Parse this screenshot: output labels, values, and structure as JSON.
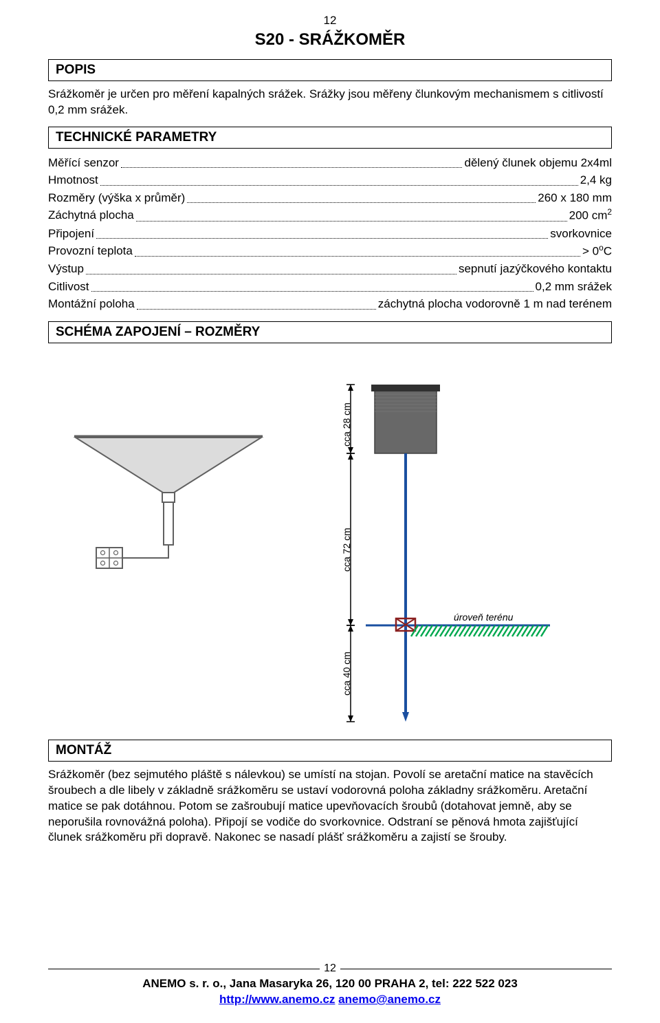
{
  "page_number_top": "12",
  "doc_title": "S20 - SRÁŽKOMĚR",
  "sections": {
    "popis": {
      "heading": "POPIS",
      "text": "Srážkoměr je určen pro měření kapalných srážek. Srážky jsou měřeny člunkovým mechanismem s citlivostí 0,2 mm srážek."
    },
    "tech": {
      "heading": "TECHNICKÉ PARAMETRY"
    },
    "schema": {
      "heading": "SCHÉMA ZAPOJENÍ – ROZMĚRY"
    },
    "montaz": {
      "heading": "MONTÁŽ",
      "text": "Srážkoměr (bez sejmutého pláště s nálevkou) se umístí na stojan. Povolí se aretační matice na stavěcích šroubech a dle libely v základně srážkoměru se ustaví vodorovná poloha základny srážkoměru. Aretační matice se pak dotáhnou. Potom se zašroubují matice upevňovacích šroubů (dotahovat jemně, aby se neporušila rovnovážná poloha). Připojí se vodiče do svorkovnice. Odstraní se pěnová hmota zajišťující člunek srážkoměru při dopravě. Nakonec se nasadí plášť srážkoměru a zajistí se šrouby."
    }
  },
  "params": [
    {
      "label": "Měřící senzor",
      "value": "dělený člunek objemu 2x4ml"
    },
    {
      "label": "Hmotnost",
      "value": "2,4 kg"
    },
    {
      "label": "Rozměry (výška x průměr)",
      "value": "260 x 180 mm"
    },
    {
      "label": "Záchytná plocha",
      "value_html": "200 cm<sup>2</sup>"
    },
    {
      "label": "Připojení",
      "value": "svorkovnice"
    },
    {
      "label": "Provozní teplota",
      "value_html": "> 0<sup>o</sup>C"
    },
    {
      "label": "Výstup",
      "value": "sepnutí jazýčkového kontaktu"
    },
    {
      "label": "Citlivost",
      "value": "0,2 mm srážek"
    },
    {
      "label": "Montážní poloha",
      "value": "záchytná plocha vodorovně 1 m nad terénem"
    }
  ],
  "diagram": {
    "labels": {
      "h1": "cca 28 cm",
      "h2": "cca 72 cm",
      "h3": "cca 40 cm",
      "ground": "úroveň terénu"
    },
    "colors": {
      "funnel_fill": "#dcdcdc",
      "funnel_stroke": "#606060",
      "can_fill": "#686868",
      "can_stroke": "#404040",
      "can_lid": "#303030",
      "pole": "#1a4fa0",
      "ground_line": "#1a4fa0",
      "grass": "#00a84f",
      "bracket": "#8a2020",
      "wire": "#606060",
      "terminal_stroke": "#606060",
      "dim_line": "#000000"
    }
  },
  "footer": {
    "page_num": "12",
    "line1": "ANEMO s. r. o., Jana Masaryka 26, 120 00 PRAHA 2, tel: 222 522 023",
    "link1": "http://www.anemo.cz",
    "sep": "  ",
    "link2": "anemo@anemo.cz"
  }
}
